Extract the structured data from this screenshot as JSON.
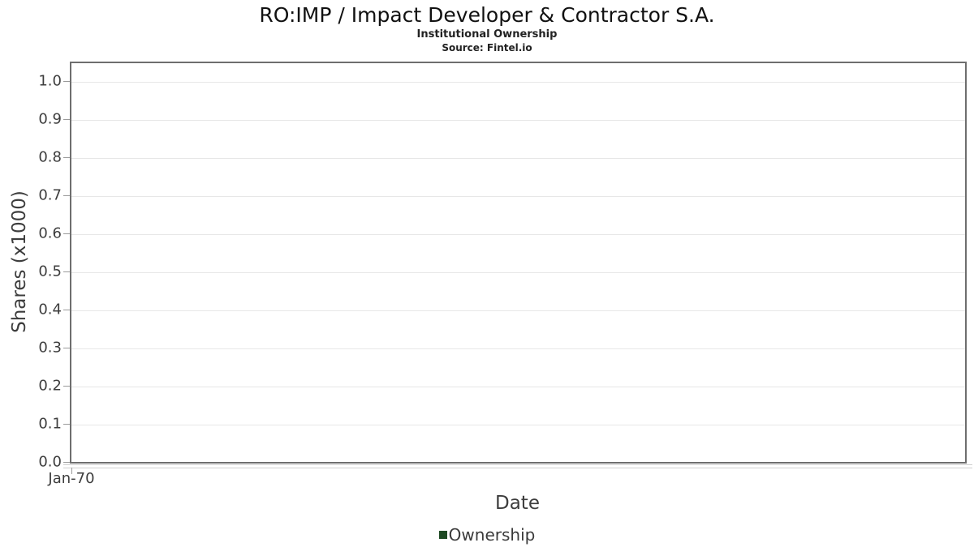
{
  "chart_data": {
    "type": "line",
    "title": "RO:IMP / Impact Developer & Contractor S.A.",
    "subtitle": "Institutional Ownership",
    "source": "Source: Fintel.io",
    "xlabel": "Date",
    "ylabel": "Shares (x1000)",
    "x_ticks": [
      "Jan-70"
    ],
    "y_ticks": [
      "1.0",
      "0.9",
      "0.8",
      "0.7",
      "0.6",
      "0.5",
      "0.4",
      "0.3",
      "0.2",
      "0.1",
      "0.0"
    ],
    "ylim": [
      0.0,
      1.05
    ],
    "grid": "horizontal",
    "legend_position": "bottom-center",
    "legend": [
      {
        "label": "Ownership",
        "color": "#1e4a23"
      }
    ],
    "series": [
      {
        "name": "Ownership",
        "x": [],
        "y": []
      }
    ]
  },
  "colors": {
    "plot_border": "#6e6e6e",
    "gridline": "#e7e7e7",
    "tick": "#9a9a9a",
    "axis_text": "#3d3d3d",
    "title_text": "#111111",
    "legend_marker": "#1e4a23",
    "background": "#ffffff"
  }
}
